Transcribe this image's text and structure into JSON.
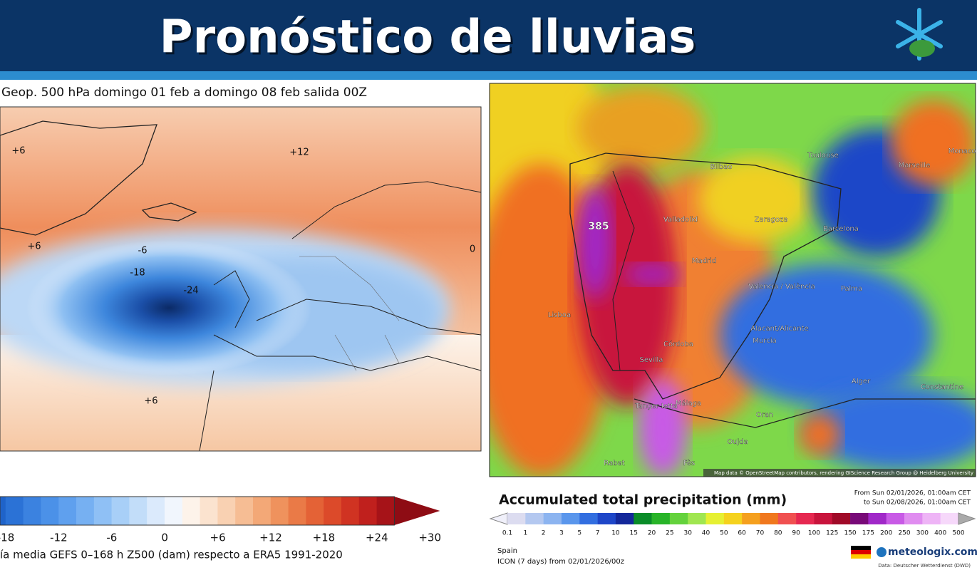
{
  "header": {
    "title": "Pronóstico de lluvias"
  },
  "left_panel": {
    "title": "Geop. 500 hPa domingo 01 feb a domingo 08 feb salida 00Z",
    "map_labels": [
      "+6",
      "+12",
      "+6",
      "-6",
      "-18",
      "-24",
      "0",
      "+6"
    ],
    "colorbar": {
      "ticks": [
        "-18",
        "-12",
        "-6",
        "0",
        "+6",
        "+12",
        "+18",
        "+24",
        "+30"
      ],
      "colors": [
        "#1f63c9",
        "#2b72d6",
        "#3b82e0",
        "#4b91e8",
        "#5fa0ee",
        "#76b0f2",
        "#8fc0f5",
        "#a8cff7",
        "#c2ddf9",
        "#dbeafc",
        "#f1f6fd",
        "#fdf3ea",
        "#fbe3cf",
        "#f9d1b2",
        "#f6bd94",
        "#f3a877",
        "#ef925d",
        "#ea7a47",
        "#e46236",
        "#dc4a2a",
        "#d03322",
        "#c0201d",
        "#a61318"
      ],
      "caption": "ía media GEFS 0–168 h Z500 (dam) respecto a ERA5 1991-2020"
    }
  },
  "right_panel": {
    "cities": [
      "Bilbao",
      "Toulouse",
      "Marseille",
      "Monaco",
      "Zaragoza",
      "Barcelona",
      "Valladolid",
      "Madrid",
      "Valencia / València",
      "Palma",
      "Lisboa",
      "Alacant/Alicante",
      "Murcia",
      "Córdoba",
      "Sevilla",
      "Málaga",
      "Tanger Ietta",
      "Alger",
      "Constantine",
      "Oran",
      "Oujda",
      "Rabat",
      "Fès",
      "385"
    ],
    "attribution": "Map data © OpenStreetMap contributors, rendering GIScience Research Group @ Heidelberg University",
    "legend_title": "Accumulated total precipitation (mm)",
    "from": "From Sun 02/01/2026, 01:00am CET",
    "to": "to Sun 02/08/2026, 01:00am CET",
    "scale_ticks": [
      "0.1",
      "1",
      "2",
      "3",
      "5",
      "7",
      "10",
      "15",
      "20",
      "25",
      "30",
      "40",
      "50",
      "60",
      "70",
      "80",
      "90",
      "100",
      "125",
      "150",
      "175",
      "200",
      "250",
      "300",
      "400",
      "500"
    ],
    "scale_colors": [
      "#dcdcf0",
      "#b4c8f0",
      "#8cb4f0",
      "#5a96ec",
      "#326ee0",
      "#1e46c8",
      "#14289a",
      "#0a8c28",
      "#28b428",
      "#64d23c",
      "#a0e650",
      "#e6f032",
      "#f5d21e",
      "#f5a01e",
      "#f0781e",
      "#f05050",
      "#e62850",
      "#c8143c",
      "#a00a28",
      "#780a78",
      "#a028c8",
      "#c85ae6",
      "#e08cf0",
      "#eeb4f6",
      "#f6d8fa"
    ],
    "region": "Spain",
    "model": "ICON (7 days) from 02/01/2026/00z",
    "brand": "meteologix.com",
    "source": "Data: Deutscher Wetterdienst (DWD)"
  }
}
